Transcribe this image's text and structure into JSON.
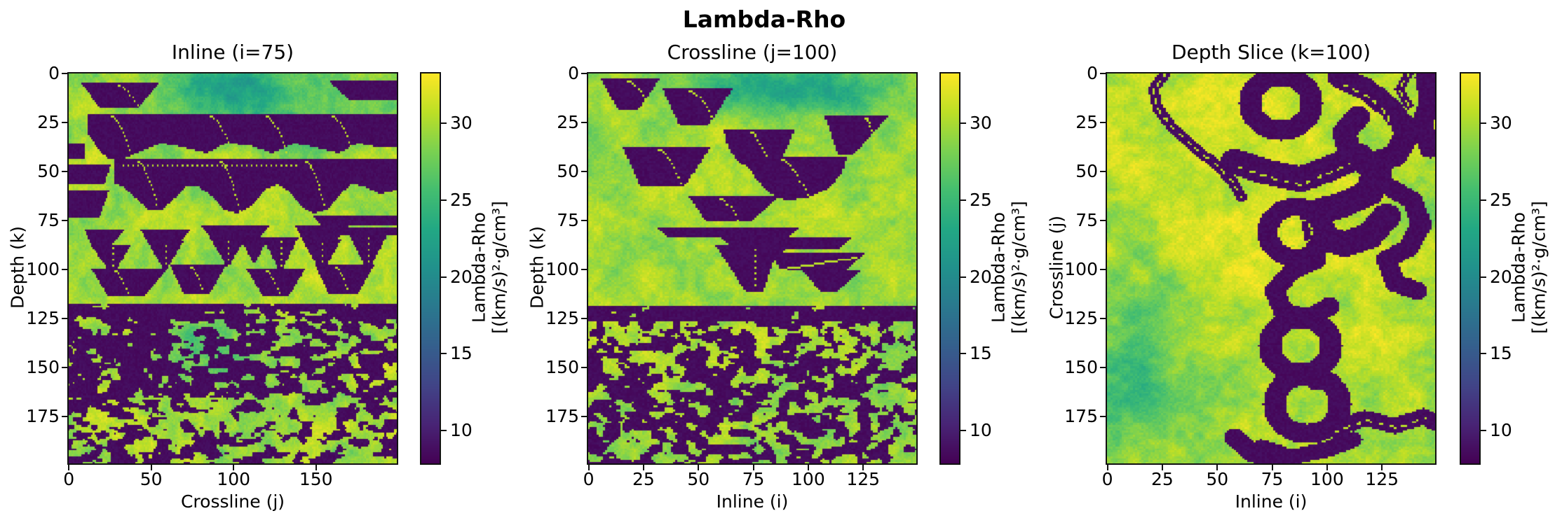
{
  "figure_title": "Lambda-Rho",
  "colorbar": {
    "label_line1": "Lambda-Rho",
    "label_line2": "[(km/s)²·g/cm³]",
    "ticks": [
      10,
      15,
      20,
      25,
      30
    ],
    "vmin": 7.8,
    "vmax": 33.3,
    "colormap": "viridis"
  },
  "panels": [
    {
      "title": "Inline (i=75)",
      "xlabel": "Crossline (j)",
      "ylabel": "Depth (k)",
      "xticks": [
        0,
        50,
        100,
        150
      ],
      "yticks": [
        0,
        25,
        50,
        75,
        100,
        125,
        150,
        175
      ],
      "x_range": [
        0,
        200
      ],
      "y_range": [
        0,
        200
      ]
    },
    {
      "title": "Crossline (j=100)",
      "xlabel": "Inline (i)",
      "ylabel": "Depth (k)",
      "xticks": [
        0,
        25,
        50,
        75,
        100,
        125
      ],
      "yticks": [
        0,
        25,
        50,
        75,
        100,
        125,
        150,
        175
      ],
      "x_range": [
        0,
        150
      ],
      "y_range": [
        0,
        200
      ]
    },
    {
      "title": "Depth Slice (k=100)",
      "xlabel": "Inline (i)",
      "ylabel": "Crossline (j)",
      "xticks": [
        0,
        25,
        50,
        75,
        100,
        125
      ],
      "yticks": [
        0,
        25,
        50,
        75,
        100,
        125,
        150,
        175
      ],
      "x_range": [
        0,
        150
      ],
      "y_range": [
        0,
        200
      ]
    }
  ],
  "chart_data": [
    {
      "type": "heatmap",
      "title": "Inline (i=75)",
      "xlabel": "Crossline (j)",
      "ylabel": "Depth (k)",
      "x_range": [
        0,
        200
      ],
      "y_range": [
        0,
        200
      ],
      "y_axis_inverted": true,
      "xticks": [
        0,
        50,
        100,
        150
      ],
      "yticks": [
        0,
        25,
        50,
        75,
        100,
        125,
        150,
        175
      ],
      "colormap": "viridis",
      "colorbar_label": "Lambda-Rho [(km/s)²·g/cm³]",
      "colorbar_ticks": [
        10,
        15,
        20,
        25,
        30
      ],
      "value_range_approx": [
        7.8,
        33.3
      ],
      "description": "Vertical section at inline i=75: high Lambda-Rho background (~27-33, yellow-green noise, teal patch near k=0-20 around j=60-130) with low Lambda-Rho (~8, dark purple) channel bodies: trapezoids at k=5-18, two stacked full-width wavy bands at k=21-44 and k=44-72 containing dotted yellow accretion curves, a row of V-shaped channels at k=78-105, a row of trapezoids at k=98-115, and a speckled purple/green mosaic zone from k=120 to 200."
    },
    {
      "type": "heatmap",
      "title": "Crossline (j=100)",
      "xlabel": "Inline (i)",
      "ylabel": "Depth (k)",
      "x_range": [
        0,
        150
      ],
      "y_range": [
        0,
        200
      ],
      "y_axis_inverted": true,
      "xticks": [
        0,
        25,
        50,
        75,
        100,
        125
      ],
      "yticks": [
        0,
        25,
        50,
        75,
        100,
        125,
        150,
        175
      ],
      "colormap": "viridis",
      "colorbar_label": "Lambda-Rho [(km/s)²·g/cm³]",
      "colorbar_ticks": [
        10,
        15,
        20,
        25,
        30
      ],
      "value_range_approx": [
        7.8,
        33.3
      ],
      "description": "Vertical section at crossline j=100: yellow-green high Lambda-Rho background with scattered dark-purple trapezoidal and U-shaped channel cross-sections between k=0 and k=115 (each cut by dotted yellow accretion curves), thin purple sheets near k=79-90, a thin yellow diagonal streak near i=90-122 k=94-100, and a dense speckled purple/green mosaic below k=120."
    },
    {
      "type": "heatmap",
      "title": "Depth Slice (k=100)",
      "xlabel": "Inline (i)",
      "ylabel": "Crossline (j)",
      "x_range": [
        0,
        150
      ],
      "y_range": [
        0,
        200
      ],
      "y_axis_inverted": true,
      "xticks": [
        0,
        25,
        50,
        75,
        100,
        125
      ],
      "yticks": [
        0,
        25,
        50,
        75,
        100,
        125,
        150,
        175
      ],
      "colormap": "viridis",
      "colorbar_label": "Lambda-Rho [(km/s)²·g/cm³]",
      "colorbar_ticks": [
        10,
        15,
        20,
        25,
        30
      ],
      "value_range_approx": [
        7.8,
        33.3
      ],
      "description": "Map-view slice at k=100: bright yellow/green high Lambda-Rho background (greener toward lower left) crossed by dark-purple meandering channel belts concentrated in the right two-thirds (i≈55-150): a narrow sinuous ribbon entering at top-left, large looped meanders and rings from j=0 to 200 including a figure-8 stack near i≈90 j≈130-185, all traced internally by thin dashed yellow point-bar lines."
    }
  ]
}
